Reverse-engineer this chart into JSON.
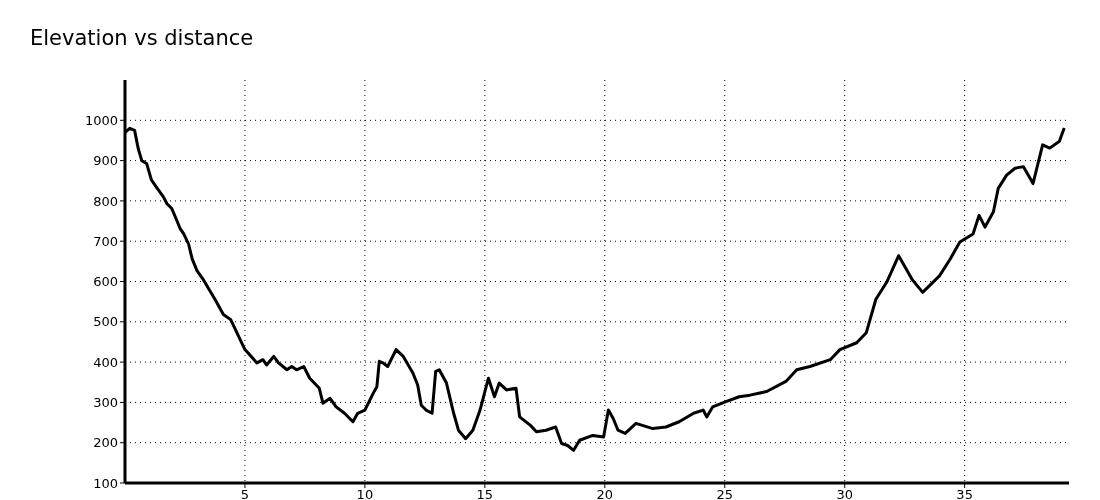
{
  "chart_data": {
    "type": "line",
    "title": "Elevation vs distance",
    "x": [
      0,
      0.2,
      0.4,
      0.55,
      0.7,
      0.9,
      1.1,
      1.3,
      1.6,
      1.75,
      1.95,
      2.1,
      2.3,
      2.45,
      2.65,
      2.8,
      3.0,
      3.25,
      3.5,
      3.75,
      4.1,
      4.4,
      4.6,
      4.8,
      5.0,
      5.5,
      5.75,
      5.9,
      6.2,
      6.4,
      6.75,
      6.95,
      7.15,
      7.45,
      7.7,
      8.1,
      8.25,
      8.55,
      8.8,
      9.15,
      9.5,
      9.7,
      10.0,
      10.35,
      10.5,
      10.6,
      10.75,
      10.95,
      11.3,
      11.6,
      12.0,
      12.2,
      12.35,
      12.55,
      12.8,
      12.95,
      13.1,
      13.4,
      13.7,
      13.9,
      14.2,
      14.5,
      14.8,
      15.15,
      15.4,
      15.6,
      15.9,
      16.3,
      16.45,
      16.9,
      17.15,
      17.55,
      17.95,
      18.2,
      18.45,
      18.7,
      18.95,
      19.5,
      19.95,
      20.15,
      20.35,
      20.55,
      20.85,
      21.3,
      22.0,
      22.55,
      23.1,
      23.7,
      24.1,
      24.25,
      24.5,
      25.05,
      25.6,
      26.05,
      26.75,
      27.55,
      28.0,
      28.55,
      29.4,
      29.8,
      30.5,
      30.9,
      31.3,
      31.75,
      32.25,
      32.8,
      33.25,
      33.95,
      34.4,
      34.8,
      35.35,
      35.6,
      35.85,
      36.2,
      36.4,
      36.75,
      37.1,
      37.45,
      37.65,
      37.85,
      38.25,
      38.55,
      38.95,
      39.15
    ],
    "values": [
      970,
      980,
      975,
      930,
      900,
      893,
      852,
      835,
      810,
      793,
      781,
      760,
      731,
      718,
      693,
      656,
      627,
      606,
      581,
      556,
      518,
      506,
      481,
      456,
      431,
      398,
      406,
      393,
      414,
      398,
      381,
      389,
      381,
      389,
      360,
      335,
      298,
      310,
      289,
      273,
      252,
      273,
      281,
      323,
      339,
      402,
      398,
      389,
      431,
      414,
      373,
      343,
      293,
      281,
      273,
      377,
      381,
      348,
      273,
      231,
      210,
      231,
      281,
      360,
      314,
      348,
      331,
      335,
      264,
      243,
      227,
      231,
      239,
      198,
      193,
      181,
      206,
      218,
      214,
      281,
      260,
      231,
      223,
      248,
      235,
      239,
      252,
      273,
      281,
      264,
      289,
      302,
      314,
      318,
      327,
      352,
      381,
      389,
      406,
      431,
      448,
      473,
      556,
      598,
      664,
      606,
      573,
      614,
      656,
      698,
      718,
      764,
      735,
      773,
      831,
      864,
      881,
      885,
      864,
      843,
      939,
      931,
      948,
      981
    ],
    "color": "#000000",
    "line_style": "solid",
    "marker": "none",
    "xlim": [
      0,
      39.35
    ],
    "xticks": [
      5,
      10,
      15,
      20,
      25,
      30,
      35
    ],
    "ylim": [
      100,
      1100
    ],
    "yticks": [
      100,
      200,
      300,
      400,
      500,
      600,
      700,
      800,
      900,
      1000
    ],
    "grid": true
  }
}
